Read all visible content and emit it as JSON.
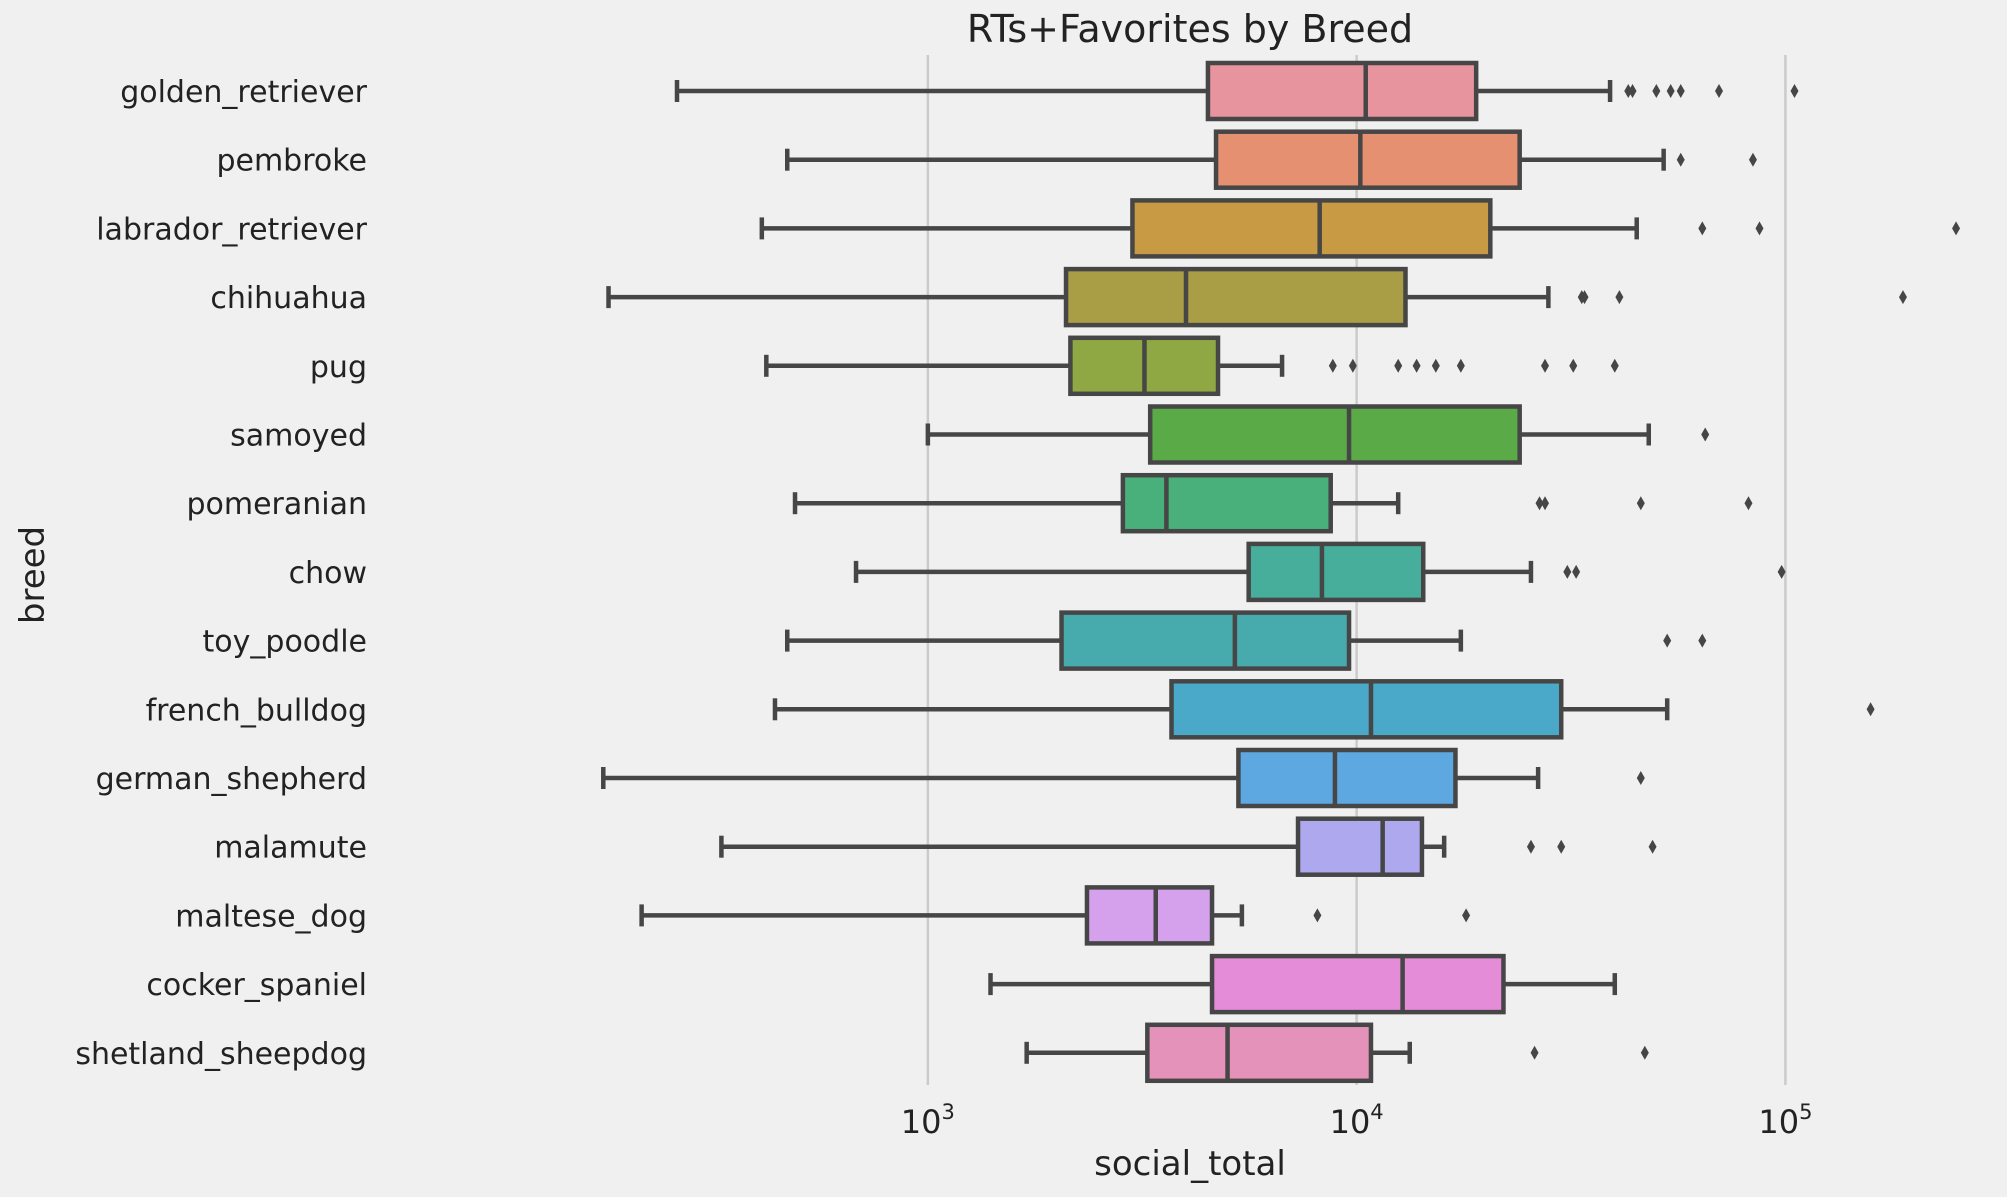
{
  "chart_data": {
    "type": "box",
    "orientation": "horizontal",
    "title": "RTs+Favorites by Breed",
    "xlabel": "social_total",
    "ylabel": "breed",
    "x_scale": "log",
    "xlim": [
      50,
      300000
    ],
    "x_ticks": [
      {
        "value": 1000,
        "base": "10",
        "exp": "3"
      },
      {
        "value": 10000,
        "base": "10",
        "exp": "4"
      },
      {
        "value": 100000,
        "base": "10",
        "exp": "5"
      }
    ],
    "grid": "vertical",
    "categories": [
      "golden_retriever",
      "pembroke",
      "labrador_retriever",
      "chihuahua",
      "pug",
      "samoyed",
      "pomeranian",
      "chow",
      "toy_poodle",
      "french_bulldog",
      "german_shepherd",
      "malamute",
      "maltese_dog",
      "cocker_spaniel",
      "shetland_sheepdog"
    ],
    "colors": [
      "#e8949f",
      "#e59070",
      "#c99a44",
      "#a99d45",
      "#8fa843",
      "#5aab48",
      "#49b07b",
      "#46ae9b",
      "#47aaad",
      "#4aa9c8",
      "#5ea8e2",
      "#aea8ee",
      "#d5a0ec",
      "#e48cd8",
      "#e592bb"
    ],
    "boxes": [
      {
        "whislo": 260,
        "q1": 4500,
        "med": 10500,
        "q3": 19000,
        "whishi": 39000,
        "fliers": [
          43000,
          44000,
          50000,
          54000,
          57000,
          70000,
          105000
        ]
      },
      {
        "whislo": 470,
        "q1": 4700,
        "med": 10200,
        "q3": 24000,
        "whishi": 52000,
        "fliers": [
          57000,
          84000
        ]
      },
      {
        "whislo": 410,
        "q1": 3000,
        "med": 8200,
        "q3": 20500,
        "whishi": 45000,
        "fliers": [
          64000,
          87000,
          250000
        ]
      },
      {
        "whislo": 180,
        "q1": 2100,
        "med": 4000,
        "q3": 13000,
        "whishi": 28000,
        "fliers": [
          33500,
          34000,
          41000,
          188000
        ]
      },
      {
        "whislo": 420,
        "q1": 2150,
        "med": 3200,
        "q3": 4750,
        "whishi": 6700,
        "fliers": [
          8800,
          9800,
          12500,
          13800,
          15300,
          17500,
          27500,
          32000,
          40000
        ]
      },
      {
        "whislo": 1000,
        "q1": 3300,
        "med": 9600,
        "q3": 24000,
        "whishi": 48000,
        "fliers": [
          65000
        ]
      },
      {
        "whislo": 490,
        "q1": 2850,
        "med": 3600,
        "q3": 8700,
        "whishi": 12500,
        "fliers": [
          26700,
          27500,
          46000,
          82000
        ]
      },
      {
        "whislo": 680,
        "q1": 5600,
        "med": 8300,
        "q3": 14300,
        "whishi": 25500,
        "fliers": [
          31000,
          32500,
          98000
        ]
      },
      {
        "whislo": 470,
        "q1": 2050,
        "med": 5200,
        "q3": 9600,
        "whishi": 17500,
        "fliers": [
          53000,
          64000
        ]
      },
      {
        "whislo": 440,
        "q1": 3700,
        "med": 10800,
        "q3": 30000,
        "whishi": 53000,
        "fliers": [
          158000
        ]
      },
      {
        "whislo": 175,
        "q1": 5300,
        "med": 8900,
        "q3": 17000,
        "whishi": 26500,
        "fliers": [
          46000
        ]
      },
      {
        "whislo": 330,
        "q1": 7300,
        "med": 11500,
        "q3": 14200,
        "whishi": 16000,
        "fliers": [
          25500,
          30000,
          49000
        ]
      },
      {
        "whislo": 215,
        "q1": 2350,
        "med": 3400,
        "q3": 4600,
        "whishi": 5400,
        "fliers": [
          8100,
          18000
        ]
      },
      {
        "whislo": 1400,
        "q1": 4600,
        "med": 12800,
        "q3": 22000,
        "whishi": 40000,
        "fliers": []
      },
      {
        "whislo": 1700,
        "q1": 3250,
        "med": 5000,
        "q3": 10800,
        "whishi": 13300,
        "fliers": [
          26000,
          47000
        ]
      }
    ]
  }
}
